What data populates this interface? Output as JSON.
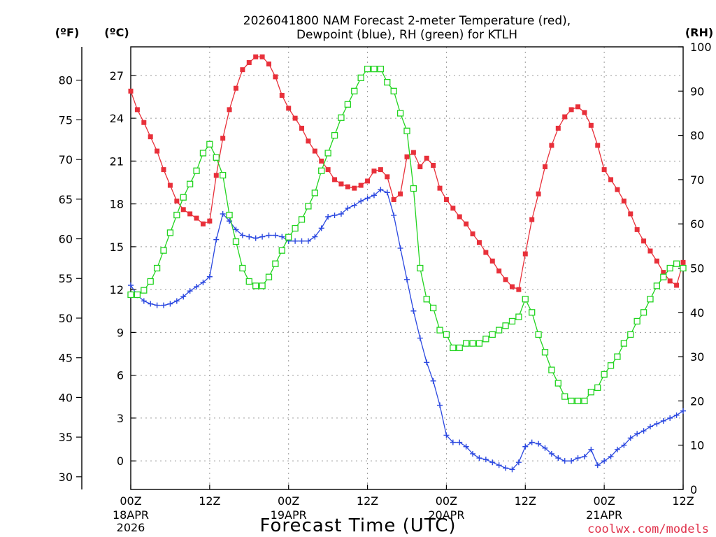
{
  "chart_data": {
    "type": "line",
    "title_line1": "2026041800 NAM Forecast 2-meter Temperature (red),",
    "title_line2": "Dewpoint (blue), RH (green) for KTLH",
    "xlabel": "Forecast Time (UTC)",
    "credit": "coolwx.com/models",
    "y_left_unit_f": "(ºF)",
    "y_left_unit_c": "(ºC)",
    "y_right_unit": "(RH)",
    "x_range_hours": [
      0,
      84
    ],
    "c_range": [
      -2,
      29
    ],
    "rh_range": [
      0,
      100
    ],
    "x_ticks": [
      {
        "hour": 0,
        "label": "00Z",
        "sub1": "18APR",
        "sub2": "2026"
      },
      {
        "hour": 12,
        "label": "12Z",
        "sub1": "",
        "sub2": ""
      },
      {
        "hour": 24,
        "label": "00Z",
        "sub1": "19APR",
        "sub2": ""
      },
      {
        "hour": 36,
        "label": "12Z",
        "sub1": "",
        "sub2": ""
      },
      {
        "hour": 48,
        "label": "00Z",
        "sub1": "20APR",
        "sub2": ""
      },
      {
        "hour": 60,
        "label": "12Z",
        "sub1": "",
        "sub2": ""
      },
      {
        "hour": 72,
        "label": "00Z",
        "sub1": "21APR",
        "sub2": ""
      },
      {
        "hour": 84,
        "label": "12Z",
        "sub1": "",
        "sub2": ""
      }
    ],
    "c_ticks": [
      "0",
      "3",
      "6",
      "9",
      "12",
      "15",
      "18",
      "21",
      "24",
      "27"
    ],
    "f_ticks": [
      "30",
      "35",
      "40",
      "45",
      "50",
      "55",
      "60",
      "65",
      "70",
      "75",
      "80"
    ],
    "rh_ticks": [
      "0",
      "10",
      "20",
      "30",
      "40",
      "50",
      "60",
      "70",
      "80",
      "90",
      "100"
    ],
    "series": [
      {
        "name": "Temperature",
        "color": "#e8303a",
        "marker": "filled-square",
        "values_c": [
          25.9,
          24.6,
          23.7,
          22.7,
          21.7,
          20.4,
          19.3,
          18.2,
          17.6,
          17.3,
          17.0,
          16.6,
          16.8,
          20.0,
          22.6,
          24.6,
          26.1,
          27.4,
          27.9,
          28.3,
          28.3,
          27.8,
          26.9,
          25.6,
          24.7,
          24.0,
          23.3,
          22.4,
          21.7,
          21.0,
          20.4,
          19.7,
          19.4,
          19.2,
          19.1,
          19.3,
          19.6,
          20.3,
          20.4,
          19.9,
          18.3,
          18.7,
          21.3,
          21.6,
          20.6,
          21.2,
          20.7,
          19.1,
          18.3,
          17.7,
          17.1,
          16.6,
          15.9,
          15.3,
          14.6,
          14.0,
          13.3,
          12.7,
          12.2,
          12.0,
          14.5,
          16.9,
          18.7,
          20.6,
          22.1,
          23.3,
          24.1,
          24.6,
          24.8,
          24.4,
          23.5,
          22.1,
          20.4,
          19.7,
          19.0,
          18.2,
          17.3,
          16.2,
          15.4,
          14.7,
          14.0,
          13.2,
          12.6,
          12.3,
          13.9
        ]
      },
      {
        "name": "Dewpoint",
        "color": "#2b48e0",
        "marker": "plus",
        "values_c": [
          12.3,
          11.6,
          11.2,
          11.0,
          10.9,
          10.9,
          11.0,
          11.2,
          11.5,
          11.9,
          12.2,
          12.5,
          12.9,
          15.5,
          17.3,
          16.8,
          16.2,
          15.8,
          15.7,
          15.6,
          15.7,
          15.8,
          15.8,
          15.7,
          15.4,
          15.4,
          15.4,
          15.4,
          15.7,
          16.3,
          17.1,
          17.2,
          17.3,
          17.7,
          17.9,
          18.2,
          18.4,
          18.6,
          19.0,
          18.8,
          17.2,
          14.9,
          12.7,
          10.5,
          8.6,
          6.9,
          5.6,
          3.9,
          1.8,
          1.3,
          1.3,
          1.0,
          0.5,
          0.2,
          0.1,
          -0.1,
          -0.3,
          -0.5,
          -0.6,
          -0.1,
          1.0,
          1.3,
          1.2,
          0.9,
          0.5,
          0.2,
          0.0,
          0.0,
          0.2,
          0.3,
          0.8,
          -0.3,
          0.0,
          0.3,
          0.8,
          1.1,
          1.6,
          1.9,
          2.1,
          2.4,
          2.6,
          2.8,
          3.0,
          3.2,
          3.5
        ]
      },
      {
        "name": "RH",
        "color": "#22d420",
        "marker": "open-square",
        "values_rh": [
          44,
          44,
          45,
          47,
          50,
          54,
          58,
          62,
          66,
          69,
          72,
          76,
          78,
          75,
          71,
          62,
          56,
          50,
          47,
          46,
          46,
          48,
          51,
          54,
          57,
          59,
          61,
          64,
          67,
          72,
          76,
          80,
          84,
          87,
          90,
          93,
          95,
          95,
          95,
          92,
          90,
          85,
          81,
          68,
          50,
          43,
          41,
          36,
          35,
          32,
          32,
          33,
          33,
          33,
          34,
          35,
          36,
          37,
          38,
          39,
          43,
          40,
          35,
          31,
          27,
          24,
          21,
          20,
          20,
          20,
          22,
          23,
          26,
          28,
          30,
          33,
          35,
          38,
          40,
          43,
          46,
          48,
          50,
          51,
          50
        ]
      }
    ]
  }
}
